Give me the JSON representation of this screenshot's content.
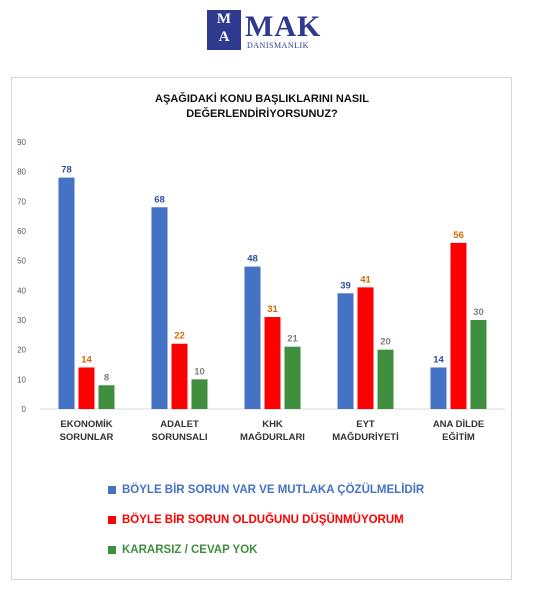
{
  "logo": {
    "letter1": "M",
    "letter2": "A",
    "letter3": "K",
    "word": "MAK",
    "sub": "DANISMANLIK"
  },
  "chart_data": {
    "type": "bar",
    "title": [
      "AŞAĞIDAKİ KONU BAŞLIKLARINI NASIL",
      "DEĞERLENDİRİYORSUNUZ?"
    ],
    "categories": [
      [
        "EKONOMİK",
        "SORUNLAR"
      ],
      [
        "ADALET",
        "SORUNSALI"
      ],
      [
        "KHK",
        "MAĞDURLARI"
      ],
      [
        "EYT",
        "MAĞDURİYETİ"
      ],
      [
        "ANA DİLDE",
        "EĞİTİM"
      ]
    ],
    "series": [
      {
        "name": "BÖYLE BİR SORUN VAR VE MUTLAKA ÇÖZÜLMELİDİR",
        "values": [
          78,
          68,
          48,
          39,
          14
        ],
        "color": "#4472c4",
        "label_color": "#2f4f9f"
      },
      {
        "name": "BÖYLE BİR SORUN OLDUĞUNU DÜŞÜNMÜYORUM",
        "values": [
          14,
          22,
          31,
          41,
          56
        ],
        "color": "#ff0000",
        "label_color": "#d46a00"
      },
      {
        "name": "KARARSIZ / CEVAP YOK",
        "values": [
          8,
          10,
          21,
          20,
          30
        ],
        "color": "#3f8f3f",
        "label_color": "#7f7f7f"
      }
    ],
    "ylim": [
      0,
      90
    ],
    "yticks": [
      "0",
      "10",
      "20",
      "30",
      "40",
      "50",
      "60",
      "70",
      "80",
      "90"
    ],
    "grid": false,
    "legend_position": "bottom"
  }
}
